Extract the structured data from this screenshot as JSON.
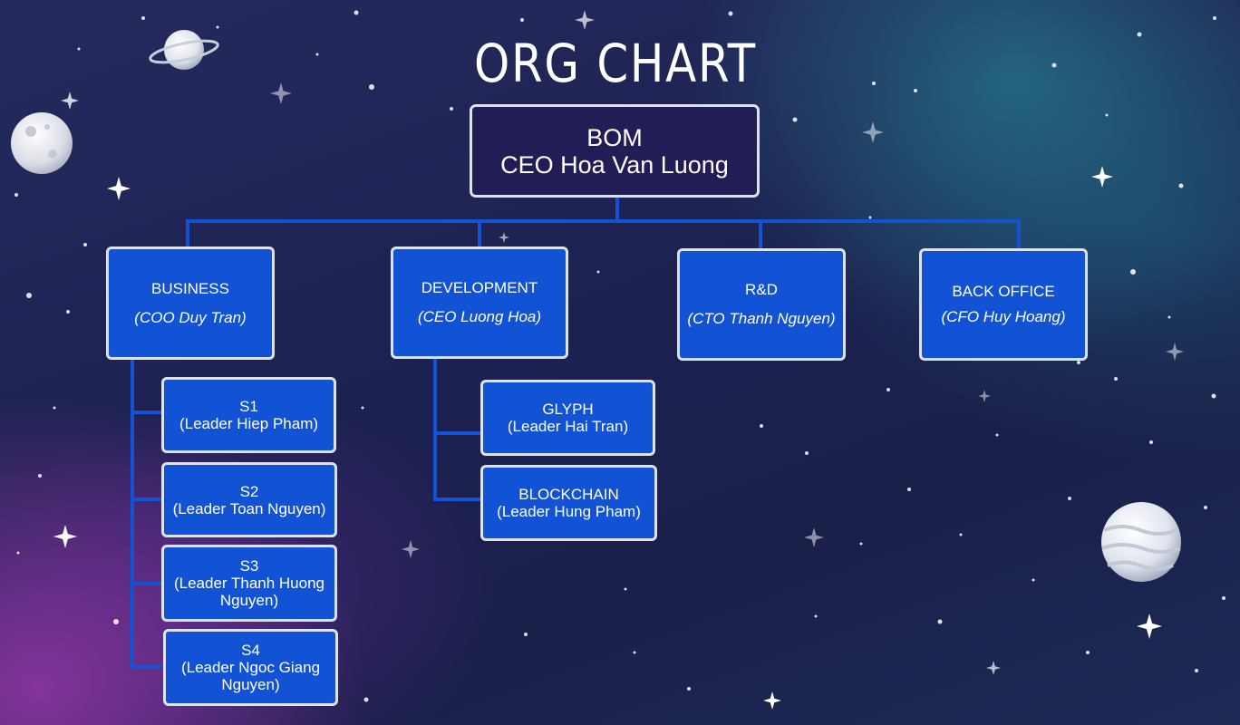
{
  "title": "ORG CHART",
  "top": {
    "line1": "BOM",
    "line2": "CEO Hoa Van Luong"
  },
  "departments": [
    {
      "name": "BUSINESS",
      "lead": "(COO Duy Tran)"
    },
    {
      "name": "DEVELOPMENT",
      "lead": "(CEO Luong Hoa)"
    },
    {
      "name": "R&D",
      "lead": "(CTO Thanh Nguyen)"
    },
    {
      "name": "BACK OFFICE",
      "lead": "(CFO Huy Hoang)"
    }
  ],
  "business_teams": [
    {
      "name": "S1",
      "leader": "(Leader Hiep Pham)"
    },
    {
      "name": "S2",
      "leader": "(Leader Toan Nguyen)"
    },
    {
      "name": "S3",
      "leader": "(Leader Thanh Huong Nguyen)"
    },
    {
      "name": "S4",
      "leader": "(Leader Ngoc Giang Nguyen)"
    }
  ],
  "development_teams": [
    {
      "name": "GLYPH",
      "leader": "(Leader Hai Tran)"
    },
    {
      "name": "BLOCKCHAIN",
      "leader": "(Leader Hung Pham)"
    }
  ],
  "colors": {
    "box_fill": "#1153d4",
    "top_fill": "#221d55",
    "connector": "#1153d4",
    "border": "#dde3ee"
  }
}
